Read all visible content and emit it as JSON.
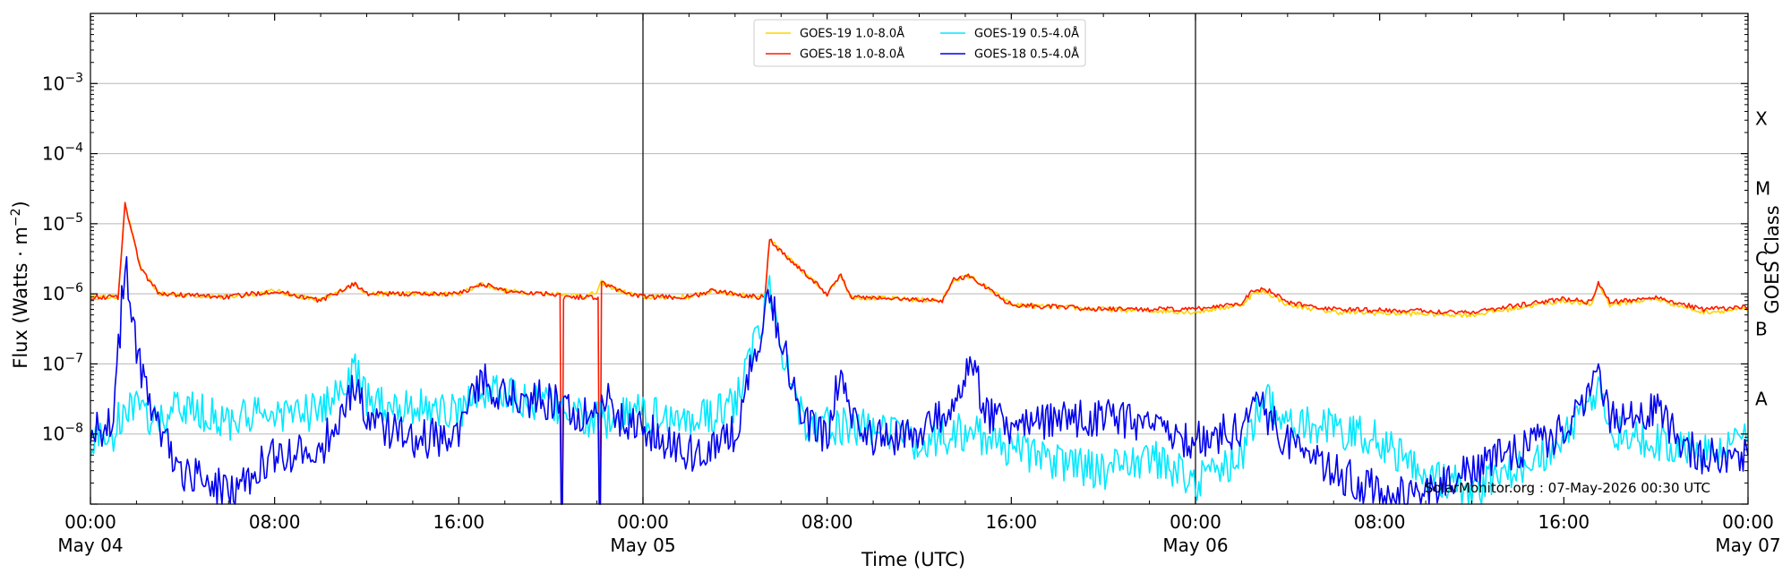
{
  "chart_data": {
    "type": "line",
    "xlabel": "Time (UTC)",
    "ylabel_base": "Flux (Watts · m",
    "ylabel_exp": "−2",
    "ylabel_close": ")",
    "right_label": "GOES Class",
    "credit": "SolarMonitor.org : 07-May-2026 00:30 UTC",
    "log_y": true,
    "grid": "horizontal",
    "legend_position": "top-center",
    "xlim_hours": [
      0,
      72
    ],
    "ylim": [
      1e-09,
      0.01
    ],
    "x_ticks": [
      {
        "hour": 0,
        "time": "00:00",
        "date": "May 04"
      },
      {
        "hour": 8,
        "time": "08:00",
        "date": ""
      },
      {
        "hour": 16,
        "time": "16:00",
        "date": ""
      },
      {
        "hour": 24,
        "time": "00:00",
        "date": "May 05"
      },
      {
        "hour": 32,
        "time": "08:00",
        "date": ""
      },
      {
        "hour": 40,
        "time": "16:00",
        "date": ""
      },
      {
        "hour": 48,
        "time": "00:00",
        "date": "May 06"
      },
      {
        "hour": 56,
        "time": "08:00",
        "date": ""
      },
      {
        "hour": 64,
        "time": "16:00",
        "date": ""
      },
      {
        "hour": 72,
        "time": "00:00",
        "date": "May 07"
      }
    ],
    "y_ticks": [
      {
        "value": 1e-08,
        "base": "10",
        "exp": "−8"
      },
      {
        "value": 1e-07,
        "base": "10",
        "exp": "−7"
      },
      {
        "value": 1e-06,
        "base": "10",
        "exp": "−6"
      },
      {
        "value": 1e-05,
        "base": "10",
        "exp": "−5"
      },
      {
        "value": 0.0001,
        "base": "10",
        "exp": "−4"
      },
      {
        "value": 0.001,
        "base": "10",
        "exp": "−3"
      }
    ],
    "class_labels": [
      {
        "label": "A",
        "value": 3.16e-08
      },
      {
        "label": "B",
        "value": 3.16e-07
      },
      {
        "label": "C",
        "value": 3.16e-06
      },
      {
        "label": "M",
        "value": 3.16e-05
      },
      {
        "label": "X",
        "value": 0.000316
      }
    ],
    "day_boundaries_hours": [
      24,
      48
    ],
    "series": [
      {
        "name": "GOES-19 1.0-8.0Å",
        "color": "#ffd400",
        "points": [
          [
            0,
            9e-07
          ],
          [
            1.2,
            9e-07
          ],
          [
            1.5,
            1.9e-05
          ],
          [
            2.2,
            2.2e-06
          ],
          [
            3,
            1e-06
          ],
          [
            6,
            9e-07
          ],
          [
            8,
            1.1e-06
          ],
          [
            10,
            8e-07
          ],
          [
            11.5,
            1.4e-06
          ],
          [
            12,
            1e-06
          ],
          [
            16,
            1e-06
          ],
          [
            17,
            1.4e-06
          ],
          [
            18,
            1.1e-06
          ],
          [
            20,
            1e-06
          ],
          [
            20.5,
            1e-06
          ],
          [
            21.5,
            9.2e-07
          ],
          [
            22,
            1.05e-06
          ],
          [
            22.2,
            1.45e-06
          ],
          [
            23,
            1.1e-06
          ],
          [
            24,
            9e-07
          ],
          [
            26,
            9e-07
          ],
          [
            27,
            1.1e-06
          ],
          [
            29,
            9e-07
          ],
          [
            29.3,
            1e-06
          ],
          [
            29.5,
            6e-06
          ],
          [
            30,
            4e-06
          ],
          [
            31,
            2e-06
          ],
          [
            32,
            1e-06
          ],
          [
            32.6,
            1.9e-06
          ],
          [
            33,
            9e-07
          ],
          [
            37,
            8e-07
          ],
          [
            37.5,
            1.6e-06
          ],
          [
            38.2,
            1.8e-06
          ],
          [
            38.8,
            1.3e-06
          ],
          [
            40,
            7e-07
          ],
          [
            44,
            6e-07
          ],
          [
            48,
            5.5e-07
          ],
          [
            50,
            7e-07
          ],
          [
            50.5,
            1e-06
          ],
          [
            51,
            1.1e-06
          ],
          [
            52,
            7e-07
          ],
          [
            54,
            5.5e-07
          ],
          [
            60,
            5e-07
          ],
          [
            64,
            8e-07
          ],
          [
            65.2,
            7e-07
          ],
          [
            65.5,
            1.4e-06
          ],
          [
            66,
            7e-07
          ],
          [
            68,
            8.5e-07
          ],
          [
            70,
            5.5e-07
          ],
          [
            72,
            6e-07
          ]
        ]
      },
      {
        "name": "GOES-18 1.0-8.0Å",
        "color": "#ff1a00",
        "points": [
          [
            0,
            9e-07
          ],
          [
            1.2,
            9e-07
          ],
          [
            1.5,
            1.9e-05
          ],
          [
            2.2,
            2.2e-06
          ],
          [
            3,
            1e-06
          ],
          [
            6,
            9e-07
          ],
          [
            8,
            1.1e-06
          ],
          [
            10,
            8e-07
          ],
          [
            11.5,
            1.4e-06
          ],
          [
            12,
            1e-06
          ],
          [
            16,
            1e-06
          ],
          [
            17,
            1.4e-06
          ],
          [
            18,
            1.1e-06
          ],
          [
            20,
            1e-06
          ],
          [
            20.4,
            1e-06
          ],
          [
            20.45,
            1e-09
          ],
          [
            20.5,
            1e-09
          ],
          [
            20.55,
            9e-07
          ],
          [
            21.5,
            9e-07
          ],
          [
            22.05,
            9e-07
          ],
          [
            22.1,
            1e-09
          ],
          [
            22.15,
            1e-09
          ],
          [
            22.2,
            1.45e-06
          ],
          [
            23,
            1.1e-06
          ],
          [
            24,
            9e-07
          ],
          [
            26,
            9e-07
          ],
          [
            27,
            1.1e-06
          ],
          [
            29,
            9e-07
          ],
          [
            29.3,
            1e-06
          ],
          [
            29.5,
            6e-06
          ],
          [
            30,
            4e-06
          ],
          [
            31,
            2e-06
          ],
          [
            32,
            1e-06
          ],
          [
            32.6,
            1.9e-06
          ],
          [
            33,
            9e-07
          ],
          [
            37,
            8e-07
          ],
          [
            37.5,
            1.6e-06
          ],
          [
            38.2,
            1.8e-06
          ],
          [
            38.8,
            1.3e-06
          ],
          [
            40,
            7e-07
          ],
          [
            44,
            6e-07
          ],
          [
            48,
            6e-07
          ],
          [
            50,
            7.5e-07
          ],
          [
            50.5,
            1.1e-06
          ],
          [
            51,
            1.2e-06
          ],
          [
            52,
            7.5e-07
          ],
          [
            54,
            6e-07
          ],
          [
            60,
            5.5e-07
          ],
          [
            64,
            8.5e-07
          ],
          [
            65.2,
            7.5e-07
          ],
          [
            65.5,
            1.5e-06
          ],
          [
            66,
            7.5e-07
          ],
          [
            68,
            9e-07
          ],
          [
            70,
            6e-07
          ],
          [
            72,
            6.5e-07
          ]
        ]
      },
      {
        "name": "GOES-19 0.5-4.0Å",
        "color": "#00e8ff",
        "points": [
          [
            0,
            8e-09
          ],
          [
            1,
            1e-08
          ],
          [
            1.5,
            2.5e-08
          ],
          [
            2,
            2.2e-08
          ],
          [
            3,
            1.5e-08
          ],
          [
            4,
            2.5e-08
          ],
          [
            6,
            1.5e-08
          ],
          [
            8,
            2e-08
          ],
          [
            10,
            2e-08
          ],
          [
            11.5,
            8e-08
          ],
          [
            12,
            3e-08
          ],
          [
            14,
            2.5e-08
          ],
          [
            16,
            2e-08
          ],
          [
            17,
            4.5e-08
          ],
          [
            18,
            3.5e-08
          ],
          [
            20,
            2.5e-08
          ],
          [
            22,
            1.5e-08
          ],
          [
            24,
            2e-08
          ],
          [
            26,
            1.5e-08
          ],
          [
            28,
            2.5e-08
          ],
          [
            29.5,
            1e-06
          ],
          [
            30,
            2e-07
          ],
          [
            31,
            1.5e-08
          ],
          [
            32,
            1.3e-08
          ],
          [
            34,
            1.2e-08
          ],
          [
            36,
            8e-09
          ],
          [
            38,
            1.1e-08
          ],
          [
            40,
            6e-09
          ],
          [
            44,
            3e-09
          ],
          [
            46,
            5e-09
          ],
          [
            48,
            2e-09
          ],
          [
            50,
            5e-09
          ],
          [
            51,
            3.5e-08
          ],
          [
            52,
            1.5e-08
          ],
          [
            54,
            1.2e-08
          ],
          [
            56,
            8e-09
          ],
          [
            58,
            3e-09
          ],
          [
            60,
            1.5e-09
          ],
          [
            62,
            3e-09
          ],
          [
            64,
            8e-09
          ],
          [
            65.5,
            4e-08
          ],
          [
            66,
            1.2e-08
          ],
          [
            68,
            8e-09
          ],
          [
            70,
            5e-09
          ],
          [
            72,
            8e-09
          ]
        ]
      },
      {
        "name": "GOES-18 0.5-4.0Å",
        "color": "#0000ee",
        "points": [
          [
            0,
            1.2e-08
          ],
          [
            1,
            1.3e-08
          ],
          [
            1.5,
            3.5e-06
          ],
          [
            2,
            1.5e-07
          ],
          [
            2.5,
            4e-08
          ],
          [
            3,
            1e-08
          ],
          [
            4,
            3e-09
          ],
          [
            6,
            1.5e-09
          ],
          [
            8,
            5e-09
          ],
          [
            10,
            6e-09
          ],
          [
            11.5,
            5e-08
          ],
          [
            12,
            1.5e-08
          ],
          [
            14,
            8e-09
          ],
          [
            16,
            1e-08
          ],
          [
            17,
            6e-08
          ],
          [
            18,
            3.5e-08
          ],
          [
            20,
            3e-08
          ],
          [
            20.4,
            2.5e-08
          ],
          [
            20.45,
            1e-09
          ],
          [
            20.5,
            1e-09
          ],
          [
            20.55,
            2e-08
          ],
          [
            22.05,
            2e-08
          ],
          [
            22.1,
            1e-09
          ],
          [
            22.15,
            1e-09
          ],
          [
            22.2,
            4.5e-08
          ],
          [
            23,
            1.5e-08
          ],
          [
            24,
            1.2e-08
          ],
          [
            26,
            5e-09
          ],
          [
            28,
            1e-08
          ],
          [
            29.5,
            1e-06
          ],
          [
            30,
            2e-07
          ],
          [
            31,
            1.5e-08
          ],
          [
            32,
            8e-09
          ],
          [
            32.6,
            9e-08
          ],
          [
            33,
            1.5e-08
          ],
          [
            34,
            9e-09
          ],
          [
            36,
            1e-08
          ],
          [
            37.5,
            3e-08
          ],
          [
            38.2,
            1.1e-07
          ],
          [
            39,
            2e-08
          ],
          [
            40,
            1.2e-08
          ],
          [
            42,
            1.5e-08
          ],
          [
            44,
            1.8e-08
          ],
          [
            46,
            1.2e-08
          ],
          [
            48,
            8e-09
          ],
          [
            50,
            1.2e-08
          ],
          [
            50.5,
            3e-08
          ],
          [
            51,
            2e-08
          ],
          [
            52,
            8e-09
          ],
          [
            54,
            3e-09
          ],
          [
            56,
            1.5e-09
          ],
          [
            58,
            1.5e-09
          ],
          [
            60,
            3e-09
          ],
          [
            62,
            6e-09
          ],
          [
            64,
            1.1e-08
          ],
          [
            65.5,
            8e-08
          ],
          [
            66,
            1.5e-08
          ],
          [
            68,
            2.5e-08
          ],
          [
            69,
            8e-09
          ],
          [
            70,
            5e-09
          ],
          [
            72,
            5e-09
          ]
        ]
      }
    ]
  }
}
